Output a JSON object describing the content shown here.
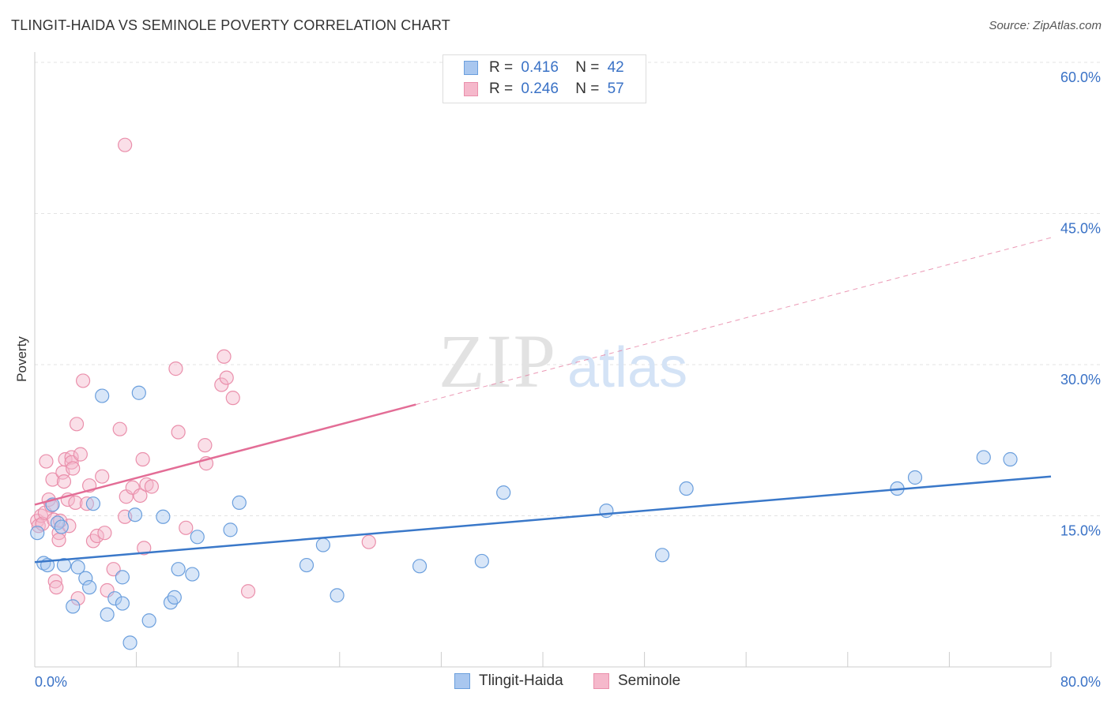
{
  "header": {
    "title": "TLINGIT-HAIDA VS SEMINOLE POVERTY CORRELATION CHART",
    "source": "Source: ZipAtlas.com"
  },
  "watermark": {
    "zip": "ZIP",
    "atlas": "atlas"
  },
  "stats": {
    "rows": [
      {
        "r_label": "R =",
        "r_value": "0.416",
        "n_label": "N =",
        "n_value": "42"
      },
      {
        "r_label": "R =",
        "r_value": "0.246",
        "n_label": "N =",
        "n_value": "57"
      }
    ]
  },
  "legend": {
    "items": [
      "Tlingit-Haida",
      "Seminole"
    ]
  },
  "colors": {
    "blue_fill": "#a9c7ef",
    "blue_stroke": "#6b9fdd",
    "blue_line": "#3a78c9",
    "pink_fill": "#f5b8cb",
    "pink_stroke": "#ea8fab",
    "pink_line": "#e36d96",
    "tick_label": "#3a72c6"
  },
  "chart_data": {
    "type": "scatter",
    "title": "TLINGIT-HAIDA VS SEMINOLE POVERTY CORRELATION CHART",
    "xlabel": "",
    "ylabel": "Poverty",
    "xlim": [
      0,
      80
    ],
    "ylim": [
      0,
      60
    ],
    "x_tick_labels": [
      "0.0%",
      "80.0%"
    ],
    "y_ticks": [
      15,
      30,
      45,
      60
    ],
    "y_tick_labels": [
      "15.0%",
      "30.0%",
      "45.0%",
      "60.0%"
    ],
    "grid": true,
    "legend_position": "bottom-center",
    "series": [
      {
        "name": "Tlingit-Haida",
        "r": 0.416,
        "n": 42,
        "trend": {
          "x": [
            0,
            80
          ],
          "y": [
            10.4,
            18.9
          ],
          "dashed_from": null
        },
        "points": [
          [
            0.2,
            13.3
          ],
          [
            0.7,
            10.3
          ],
          [
            1.0,
            10.1
          ],
          [
            1.4,
            16.1
          ],
          [
            1.8,
            14.3
          ],
          [
            2.1,
            13.9
          ],
          [
            2.3,
            10.1
          ],
          [
            3.0,
            6.0
          ],
          [
            3.4,
            9.9
          ],
          [
            4.0,
            8.8
          ],
          [
            4.3,
            7.9
          ],
          [
            4.6,
            16.2
          ],
          [
            5.3,
            26.9
          ],
          [
            5.7,
            5.2
          ],
          [
            6.3,
            6.8
          ],
          [
            6.9,
            6.3
          ],
          [
            6.9,
            8.9
          ],
          [
            7.5,
            2.4
          ],
          [
            7.9,
            15.1
          ],
          [
            8.2,
            27.2
          ],
          [
            9.0,
            4.6
          ],
          [
            10.1,
            14.9
          ],
          [
            10.7,
            6.4
          ],
          [
            11.0,
            6.9
          ],
          [
            11.3,
            9.7
          ],
          [
            12.4,
            9.2
          ],
          [
            12.8,
            12.9
          ],
          [
            15.4,
            13.6
          ],
          [
            16.1,
            16.3
          ],
          [
            21.4,
            10.1
          ],
          [
            22.7,
            12.1
          ],
          [
            23.8,
            7.1
          ],
          [
            30.3,
            10.0
          ],
          [
            35.2,
            10.5
          ],
          [
            36.9,
            17.3
          ],
          [
            45.0,
            15.5
          ],
          [
            49.4,
            11.1
          ],
          [
            51.3,
            17.7
          ],
          [
            67.9,
            17.7
          ],
          [
            69.3,
            18.8
          ],
          [
            74.7,
            20.8
          ],
          [
            76.8,
            20.6
          ]
        ]
      },
      {
        "name": "Seminole",
        "r": 0.246,
        "n": 57,
        "trend": {
          "x": [
            0,
            80
          ],
          "y": [
            16.1,
            42.6
          ],
          "solid_until_x": 30
        },
        "points": [
          [
            0.2,
            14.5
          ],
          [
            0.3,
            14.0
          ],
          [
            0.5,
            15.0
          ],
          [
            0.6,
            14.2
          ],
          [
            0.8,
            15.3
          ],
          [
            0.9,
            20.4
          ],
          [
            1.1,
            16.6
          ],
          [
            1.3,
            16.0
          ],
          [
            1.4,
            18.6
          ],
          [
            1.5,
            14.6
          ],
          [
            1.6,
            8.5
          ],
          [
            1.7,
            7.9
          ],
          [
            1.9,
            13.3
          ],
          [
            1.9,
            12.6
          ],
          [
            2.2,
            19.3
          ],
          [
            2.3,
            18.4
          ],
          [
            2.4,
            20.6
          ],
          [
            2.6,
            16.6
          ],
          [
            2.7,
            14.0
          ],
          [
            2.9,
            20.8
          ],
          [
            2.9,
            20.3
          ],
          [
            3.0,
            19.7
          ],
          [
            3.2,
            16.3
          ],
          [
            3.3,
            24.1
          ],
          [
            3.4,
            6.8
          ],
          [
            3.6,
            21.1
          ],
          [
            3.8,
            28.4
          ],
          [
            4.1,
            16.2
          ],
          [
            4.3,
            18.0
          ],
          [
            4.6,
            12.5
          ],
          [
            4.9,
            13.0
          ],
          [
            5.3,
            18.9
          ],
          [
            5.5,
            13.3
          ],
          [
            5.7,
            7.6
          ],
          [
            6.2,
            9.7
          ],
          [
            6.7,
            23.6
          ],
          [
            7.1,
            51.8
          ],
          [
            7.1,
            14.9
          ],
          [
            7.2,
            16.9
          ],
          [
            7.7,
            17.8
          ],
          [
            8.3,
            17.0
          ],
          [
            8.5,
            20.6
          ],
          [
            8.6,
            11.8
          ],
          [
            8.8,
            18.1
          ],
          [
            9.2,
            17.9
          ],
          [
            11.1,
            29.6
          ],
          [
            11.3,
            23.3
          ],
          [
            11.9,
            13.8
          ],
          [
            13.4,
            22.0
          ],
          [
            13.5,
            20.2
          ],
          [
            14.7,
            28.0
          ],
          [
            14.9,
            30.8
          ],
          [
            15.1,
            28.7
          ],
          [
            15.6,
            26.7
          ],
          [
            16.8,
            7.5
          ],
          [
            26.3,
            12.4
          ],
          [
            2.0,
            14.5
          ]
        ]
      }
    ]
  }
}
